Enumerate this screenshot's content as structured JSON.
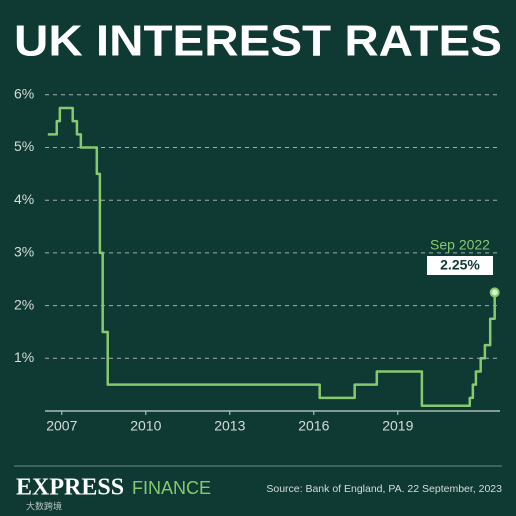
{
  "chart_data": {
    "type": "line",
    "title": "UK INTEREST RATES",
    "x": [
      2006.5,
      2006.82,
      2006.93,
      2007.39,
      2007.54,
      2007.68,
      2008.25,
      2008.36,
      2008.46,
      2008.64,
      2016.21,
      2017.46,
      2018.25,
      2019.86,
      2021.57,
      2021.68,
      2021.79,
      2021.96,
      2022.11,
      2022.3,
      2022.46
    ],
    "series": [
      {
        "color": "#86c96e",
        "values": [
          5.25,
          5.5,
          5.75,
          5.5,
          5.25,
          5.0,
          4.5,
          3.0,
          1.5,
          0.5,
          0.25,
          0.5,
          0.75,
          0.1,
          0.25,
          0.5,
          0.75,
          1.0,
          1.25,
          1.75,
          2.25
        ]
      }
    ],
    "step": "post",
    "xlim": [
      2006.4,
      2022.9
    ],
    "xticks": [
      2007,
      2010,
      2013,
      2016,
      2019
    ],
    "ylim": [
      0,
      6.3
    ],
    "yticks": [
      {
        "value": 1,
        "label": "1%"
      },
      {
        "value": 2,
        "label": "2%"
      },
      {
        "value": 3,
        "label": "3%"
      },
      {
        "value": 4,
        "label": "4%"
      },
      {
        "value": 5,
        "label": "5%"
      },
      {
        "value": 6,
        "label": "6%"
      }
    ],
    "grid": true,
    "annotation": {
      "label": "Sep 2022",
      "value_label": "2.25%"
    },
    "brand": "EXPRESS",
    "section": "FINANCE",
    "source": "Source: Bank of England, PA. 22 September, 2023",
    "watermark": "大数跨境"
  }
}
